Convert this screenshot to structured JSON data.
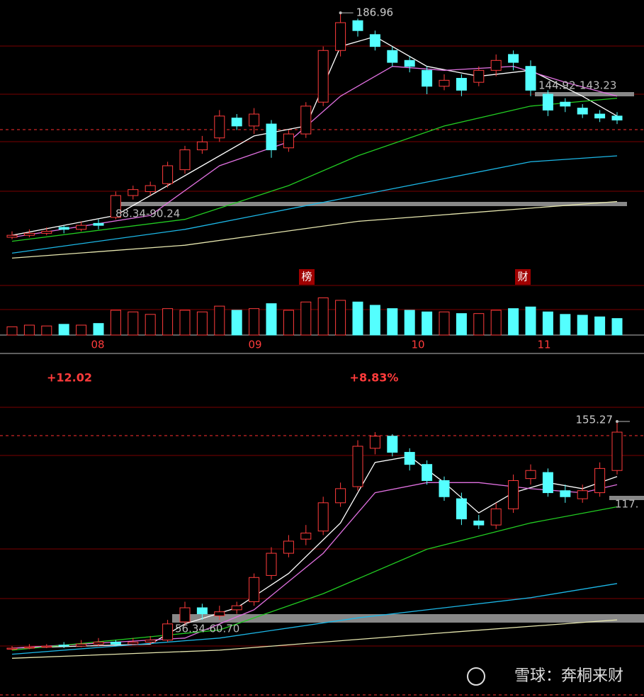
{
  "chart_data": [
    {
      "type": "candlestick",
      "ylim": [
        63.3,
        193.4
      ],
      "open": [
        74,
        75,
        76,
        79,
        78,
        81,
        84,
        95,
        97,
        101,
        108,
        118,
        124,
        134,
        130,
        131,
        119,
        126,
        142,
        168,
        183,
        176,
        168,
        163,
        158,
        150,
        154,
        152,
        158,
        166,
        160,
        146,
        142,
        139,
        136,
        135
      ],
      "close": [
        75,
        76,
        77,
        78,
        80,
        80,
        95,
        98,
        100,
        110,
        118,
        122,
        135,
        130,
        136,
        118,
        126,
        140,
        168,
        182,
        178,
        170,
        162,
        160,
        150,
        153,
        148,
        158,
        163,
        162,
        148,
        138,
        140,
        136,
        134,
        133
      ],
      "high": [
        77,
        78,
        79,
        80,
        82,
        83,
        97,
        100,
        102,
        112,
        120,
        125,
        138,
        136,
        139,
        133,
        128,
        142,
        170,
        186.96,
        184,
        178,
        170,
        165,
        160,
        156,
        156,
        160,
        166,
        168,
        163,
        148,
        144,
        141,
        138,
        137
      ],
      "low": [
        73,
        74,
        75,
        76,
        77,
        78,
        83,
        93,
        95,
        99,
        106,
        116,
        122,
        128,
        126,
        114,
        117,
        124,
        140,
        165,
        175,
        168,
        160,
        157,
        146,
        148,
        145,
        150,
        155,
        158,
        145,
        135,
        137,
        134,
        132,
        131
      ],
      "up_color": "#ff3b3b",
      "down_color": "#54ffff",
      "lines": [
        {
          "color": "#ffffff",
          "x": [
            0,
            6,
            10,
            14,
            17,
            19,
            21,
            24,
            27,
            30,
            33,
            35
          ],
          "values": [
            75,
            85,
            105,
            125,
            130,
            170,
            175,
            160,
            155,
            158,
            145,
            135
          ]
        },
        {
          "color": "#e070e0",
          "x": [
            0,
            8,
            12,
            16,
            19,
            22,
            25,
            29,
            32,
            35
          ],
          "values": [
            74,
            85,
            110,
            122,
            145,
            160,
            158,
            160,
            152,
            145
          ]
        },
        {
          "color": "#22cc22",
          "x": [
            0,
            10,
            16,
            20,
            25,
            30,
            35
          ],
          "values": [
            72,
            83,
            100,
            115,
            130,
            140,
            144
          ]
        },
        {
          "color": "#1cb8e8",
          "x": [
            0,
            10,
            20,
            30,
            35
          ],
          "values": [
            66,
            78,
            95,
            112,
            115
          ]
        },
        {
          "color": "#e8e8b0",
          "x": [
            0,
            10,
            20,
            35
          ],
          "values": [
            63.5,
            70,
            82,
            92
          ]
        }
      ],
      "range_labels": [
        "144.92-143.23",
        "88.34-90.24"
      ],
      "volume": [
        10,
        12,
        11,
        13,
        12,
        14,
        30,
        28,
        25,
        32,
        30,
        28,
        35,
        30,
        32,
        38,
        30,
        40,
        45,
        42,
        40,
        36,
        32,
        30,
        28,
        28,
        26,
        26,
        30,
        32,
        34,
        28,
        25,
        24,
        22,
        20
      ],
      "volume_ylim": [
        0,
        60
      ],
      "markers": [
        "榜",
        "财"
      ],
      "x_labels": [
        "08",
        "09",
        "10",
        "11"
      ]
    },
    {
      "type": "candlestick",
      "ylim": [
        18.8,
        162.3
      ],
      "open": [
        42.5,
        43,
        43.5,
        44.5,
        44,
        45,
        46,
        45,
        46,
        47,
        56,
        63,
        59,
        62,
        66,
        79,
        90,
        97,
        101,
        115,
        123,
        142,
        148,
        140,
        134,
        126,
        117,
        106,
        104,
        112,
        127,
        130,
        121,
        117,
        120,
        131
      ],
      "close": [
        43,
        43.5,
        44,
        44,
        45,
        46,
        45,
        46,
        47,
        55,
        63,
        60,
        61,
        64,
        78,
        90,
        96,
        100,
        115,
        122,
        143,
        148,
        140,
        134,
        126,
        118,
        107,
        104,
        112,
        126,
        131,
        120,
        118,
        121,
        132,
        150
      ],
      "high": [
        44,
        45,
        45,
        46,
        47,
        48,
        47,
        48,
        49,
        57,
        66,
        65,
        64,
        66,
        80,
        93,
        99,
        104,
        118,
        125,
        146,
        150,
        149,
        142,
        136,
        128,
        120,
        109,
        115,
        129,
        134,
        132,
        124,
        124,
        135,
        155.27
      ],
      "low": [
        42,
        42.5,
        43,
        43,
        43.5,
        44,
        44,
        44.5,
        45,
        46,
        54,
        57,
        57,
        60,
        64,
        77,
        88,
        94,
        99,
        113,
        121,
        139,
        138,
        131,
        124,
        116,
        104,
        102,
        102,
        110,
        124,
        118,
        115,
        115,
        118,
        129
      ],
      "up_color": "#ff3b3b",
      "down_color": "#54ffff",
      "lines": [
        {
          "color": "#ffffff",
          "x": [
            0,
            8,
            10,
            13,
            16,
            19,
            21,
            23,
            25,
            27,
            29,
            31,
            33,
            35
          ],
          "values": [
            43,
            45,
            55,
            63,
            80,
            105,
            135,
            138,
            125,
            110,
            120,
            125,
            122,
            128
          ]
        },
        {
          "color": "#e070e0",
          "x": [
            0,
            10,
            14,
            18,
            21,
            24,
            27,
            30,
            33,
            35
          ],
          "values": [
            43,
            48,
            62,
            90,
            120,
            125,
            125,
            122,
            120,
            124
          ]
        },
        {
          "color": "#22cc22",
          "x": [
            0,
            12,
            18,
            24,
            30,
            35
          ],
          "values": [
            42,
            52,
            70,
            92,
            105,
            113
          ]
        },
        {
          "color": "#1cb8e8",
          "x": [
            0,
            12,
            20,
            30,
            35
          ],
          "values": [
            40,
            48,
            58,
            68,
            75
          ]
        },
        {
          "color": "#e8e8b0",
          "x": [
            0,
            12,
            24,
            35
          ],
          "values": [
            38,
            42,
            50,
            57
          ]
        }
      ],
      "range_labels": [
        "117.",
        "56.34-60.70"
      ]
    }
  ],
  "stats": [
    "+12.02",
    "+8.83%"
  ],
  "watermark": "雪球：奔桐来财"
}
